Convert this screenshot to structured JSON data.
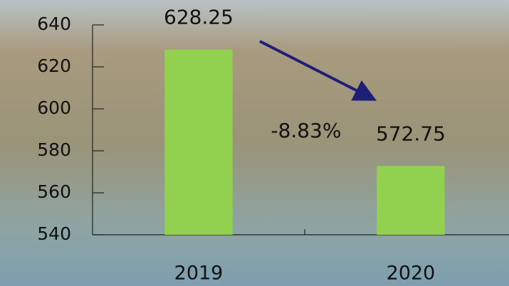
{
  "chart_data": {
    "type": "bar",
    "categories": [
      "2019",
      "2020"
    ],
    "values": [
      628.25,
      572.75
    ],
    "color": "#92d050",
    "ylim": [
      540,
      640
    ],
    "yticks": [
      540,
      560,
      580,
      600,
      620,
      640
    ],
    "annotation": "-8.83%"
  }
}
